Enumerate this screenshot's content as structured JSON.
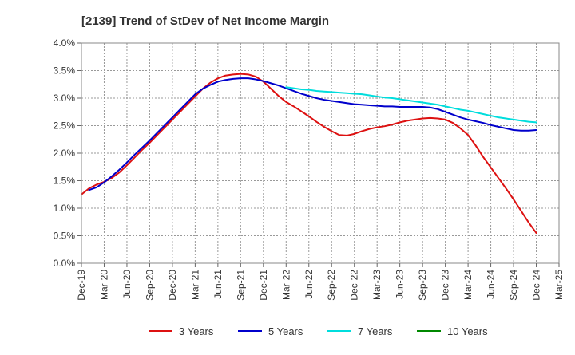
{
  "chart_data": {
    "type": "line",
    "title": "[2139]  Trend of StDev of Net Income Margin",
    "xlabel": "",
    "ylabel": "",
    "x_ticks": [
      "Dec-19",
      "Mar-20",
      "Jun-20",
      "Sep-20",
      "Dec-20",
      "Mar-21",
      "Jun-21",
      "Sep-21",
      "Dec-21",
      "Mar-22",
      "Jun-22",
      "Sep-22",
      "Dec-22",
      "Mar-23",
      "Jun-23",
      "Sep-23",
      "Dec-23",
      "Mar-24",
      "Jun-24",
      "Sep-24",
      "Dec-24",
      "Mar-25"
    ],
    "y_ticks": [
      "0.0%",
      "0.5%",
      "1.0%",
      "1.5%",
      "2.0%",
      "2.5%",
      "3.0%",
      "3.5%",
      "4.0%"
    ],
    "ylim": [
      0,
      4.0
    ],
    "grid": true,
    "legend_position": "bottom",
    "series": [
      {
        "name": "3 Years",
        "color": "#dd1111",
        "x": [
          "Dec-19",
          "Jan-20",
          "Feb-20",
          "Mar-20",
          "Apr-20",
          "May-20",
          "Jun-20",
          "Jul-20",
          "Aug-20",
          "Sep-20",
          "Oct-20",
          "Nov-20",
          "Dec-20",
          "Jan-21",
          "Feb-21",
          "Mar-21",
          "Apr-21",
          "May-21",
          "Jun-21",
          "Jul-21",
          "Aug-21",
          "Sep-21",
          "Oct-21",
          "Nov-21",
          "Dec-21",
          "Jan-22",
          "Feb-22",
          "Mar-22",
          "Apr-22",
          "May-22",
          "Jun-22",
          "Jul-22",
          "Aug-22",
          "Sep-22",
          "Oct-22",
          "Nov-22",
          "Dec-22",
          "Jan-23",
          "Feb-23",
          "Mar-23",
          "Apr-23",
          "May-23",
          "Jun-23",
          "Jul-23",
          "Aug-23",
          "Sep-23",
          "Oct-23",
          "Nov-23",
          "Dec-23",
          "Jan-24",
          "Feb-24",
          "Mar-24",
          "Apr-24",
          "May-24",
          "Jun-24",
          "Jul-24",
          "Aug-24",
          "Sep-24",
          "Oct-24",
          "Nov-24",
          "Dec-24"
        ],
        "values": [
          1.25,
          1.36,
          1.43,
          1.48,
          1.55,
          1.65,
          1.78,
          1.92,
          2.06,
          2.19,
          2.33,
          2.47,
          2.61,
          2.75,
          2.89,
          3.03,
          3.17,
          3.28,
          3.36,
          3.41,
          3.43,
          3.44,
          3.43,
          3.39,
          3.3,
          3.17,
          3.04,
          2.93,
          2.85,
          2.76,
          2.67,
          2.57,
          2.48,
          2.4,
          2.33,
          2.32,
          2.35,
          2.4,
          2.44,
          2.47,
          2.49,
          2.52,
          2.56,
          2.59,
          2.61,
          2.63,
          2.64,
          2.63,
          2.61,
          2.55,
          2.45,
          2.33,
          2.14,
          1.93,
          1.74,
          1.55,
          1.36,
          1.16,
          0.95,
          0.74,
          0.55
        ]
      },
      {
        "name": "5 Years",
        "color": "#0000cc",
        "x": [
          "Jan-20",
          "Feb-20",
          "Mar-20",
          "Apr-20",
          "May-20",
          "Jun-20",
          "Jul-20",
          "Aug-20",
          "Sep-20",
          "Oct-20",
          "Nov-20",
          "Dec-20",
          "Jan-21",
          "Feb-21",
          "Mar-21",
          "Apr-21",
          "May-21",
          "Jun-21",
          "Jul-21",
          "Aug-21",
          "Sep-21",
          "Oct-21",
          "Nov-21",
          "Dec-21",
          "Jan-22",
          "Feb-22",
          "Mar-22",
          "Apr-22",
          "May-22",
          "Jun-22",
          "Jul-22",
          "Aug-22",
          "Sep-22",
          "Oct-22",
          "Nov-22",
          "Dec-22",
          "Jan-23",
          "Feb-23",
          "Mar-23",
          "Apr-23",
          "May-23",
          "Jun-23",
          "Jul-23",
          "Aug-23",
          "Sep-23",
          "Oct-23",
          "Nov-23",
          "Dec-23",
          "Jan-24",
          "Feb-24",
          "Mar-24",
          "Apr-24",
          "May-24",
          "Jun-24",
          "Jul-24",
          "Aug-24",
          "Sep-24",
          "Oct-24",
          "Nov-24",
          "Dec-24"
        ],
        "values": [
          1.33,
          1.38,
          1.47,
          1.58,
          1.7,
          1.83,
          1.97,
          2.1,
          2.23,
          2.37,
          2.51,
          2.65,
          2.79,
          2.93,
          3.07,
          3.17,
          3.24,
          3.3,
          3.33,
          3.35,
          3.36,
          3.36,
          3.34,
          3.31,
          3.27,
          3.23,
          3.18,
          3.13,
          3.08,
          3.04,
          3.0,
          2.97,
          2.95,
          2.93,
          2.91,
          2.89,
          2.88,
          2.87,
          2.86,
          2.85,
          2.85,
          2.84,
          2.84,
          2.84,
          2.84,
          2.83,
          2.8,
          2.75,
          2.7,
          2.65,
          2.61,
          2.58,
          2.55,
          2.51,
          2.48,
          2.45,
          2.42,
          2.41,
          2.41,
          2.42
        ]
      },
      {
        "name": "7 Years",
        "color": "#00dddd",
        "x": [
          "Mar-22",
          "Apr-22",
          "May-22",
          "Jun-22",
          "Jul-22",
          "Aug-22",
          "Sep-22",
          "Oct-22",
          "Nov-22",
          "Dec-22",
          "Jan-23",
          "Feb-23",
          "Mar-23",
          "Apr-23",
          "May-23",
          "Jun-23",
          "Jul-23",
          "Aug-23",
          "Sep-23",
          "Oct-23",
          "Nov-23",
          "Dec-23",
          "Jan-24",
          "Feb-24",
          "Mar-24",
          "Apr-24",
          "May-24",
          "Jun-24",
          "Jul-24",
          "Aug-24",
          "Sep-24",
          "Oct-24",
          "Nov-24",
          "Dec-24"
        ],
        "values": [
          3.2,
          3.18,
          3.16,
          3.15,
          3.13,
          3.12,
          3.11,
          3.1,
          3.09,
          3.08,
          3.07,
          3.05,
          3.03,
          3.01,
          3.0,
          2.98,
          2.96,
          2.94,
          2.92,
          2.9,
          2.88,
          2.85,
          2.82,
          2.79,
          2.77,
          2.74,
          2.71,
          2.68,
          2.65,
          2.63,
          2.61,
          2.59,
          2.57,
          2.56
        ]
      },
      {
        "name": "10 Years",
        "color": "#008800",
        "x": [],
        "values": []
      }
    ]
  }
}
